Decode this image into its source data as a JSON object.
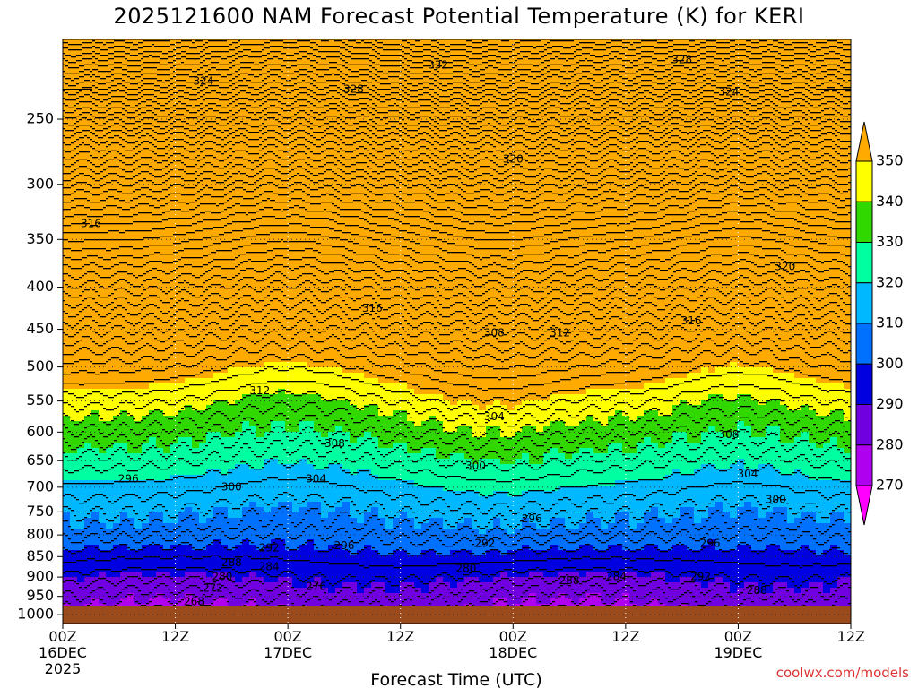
{
  "chart_data": {
    "type": "contour",
    "title": "2025121600 NAM Forecast Potential Temperature (K) for KERI",
    "xlabel": "Forecast Time (UTC)",
    "ylabel": "",
    "x_ticks": [
      {
        "hour": 0,
        "lines": [
          "00Z",
          "16DEC",
          "2025"
        ]
      },
      {
        "hour": 12,
        "lines": [
          "12Z"
        ]
      },
      {
        "hour": 24,
        "lines": [
          "00Z",
          "17DEC"
        ]
      },
      {
        "hour": 36,
        "lines": [
          "12Z"
        ]
      },
      {
        "hour": 48,
        "lines": [
          "00Z",
          "18DEC"
        ]
      },
      {
        "hour": 60,
        "lines": [
          "12Z"
        ]
      },
      {
        "hour": 72,
        "lines": [
          "00Z",
          "19DEC"
        ]
      },
      {
        "hour": 84,
        "lines": [
          "12Z"
        ]
      }
    ],
    "x_range": [
      0,
      84
    ],
    "y_ticks": [
      250,
      300,
      350,
      400,
      450,
      500,
      550,
      600,
      650,
      700,
      750,
      800,
      850,
      900,
      950,
      1000
    ],
    "y_range": [
      200,
      1025
    ],
    "y_scale": "log",
    "y_reversed": true,
    "colorbar": {
      "labels": [
        "270",
        "280",
        "290",
        "300",
        "310",
        "320",
        "330",
        "340",
        "350"
      ],
      "colors": [
        "#ff00ff",
        "#b000f0",
        "#7000e0",
        "#0000e0",
        "#0070ff",
        "#00b8ff",
        "#00ffa0",
        "#30d800",
        "#ffff00",
        "#ffaa00"
      ]
    },
    "contour_labels": [
      {
        "text": "324",
        "hour": 15,
        "pressure": 225
      },
      {
        "text": "328",
        "hour": 31,
        "pressure": 230
      },
      {
        "text": "332",
        "hour": 40,
        "pressure": 215
      },
      {
        "text": "328",
        "hour": 66,
        "pressure": 212
      },
      {
        "text": "324",
        "hour": 71,
        "pressure": 232
      },
      {
        "text": "320",
        "hour": 48,
        "pressure": 280
      },
      {
        "text": "316",
        "hour": 3,
        "pressure": 335
      },
      {
        "text": "320",
        "hour": 77,
        "pressure": 378
      },
      {
        "text": "316",
        "hour": 33,
        "pressure": 425
      },
      {
        "text": "308",
        "hour": 46,
        "pressure": 455
      },
      {
        "text": "312",
        "hour": 53,
        "pressure": 455
      },
      {
        "text": "316",
        "hour": 67,
        "pressure": 440
      },
      {
        "text": "312",
        "hour": 21,
        "pressure": 535
      },
      {
        "text": "304",
        "hour": 46,
        "pressure": 575
      },
      {
        "text": "308",
        "hour": 29,
        "pressure": 620
      },
      {
        "text": "308",
        "hour": 71,
        "pressure": 605
      },
      {
        "text": "296",
        "hour": 7,
        "pressure": 685
      },
      {
        "text": "300",
        "hour": 18,
        "pressure": 700
      },
      {
        "text": "304",
        "hour": 27,
        "pressure": 685
      },
      {
        "text": "300",
        "hour": 44,
        "pressure": 660
      },
      {
        "text": "304",
        "hour": 73,
        "pressure": 675
      },
      {
        "text": "300",
        "hour": 76,
        "pressure": 725
      },
      {
        "text": "296",
        "hour": 50,
        "pressure": 765
      },
      {
        "text": "292",
        "hour": 22,
        "pressure": 830
      },
      {
        "text": "296",
        "hour": 30,
        "pressure": 825
      },
      {
        "text": "292",
        "hour": 45,
        "pressure": 820
      },
      {
        "text": "296",
        "hour": 69,
        "pressure": 820
      },
      {
        "text": "288",
        "hour": 18,
        "pressure": 865
      },
      {
        "text": "284",
        "hour": 22,
        "pressure": 875
      },
      {
        "text": "280",
        "hour": 17,
        "pressure": 900
      },
      {
        "text": "280",
        "hour": 43,
        "pressure": 880
      },
      {
        "text": "288",
        "hour": 54,
        "pressure": 910
      },
      {
        "text": "284",
        "hour": 59,
        "pressure": 900
      },
      {
        "text": "292",
        "hour": 68,
        "pressure": 900
      },
      {
        "text": "272",
        "hour": 16,
        "pressure": 930
      },
      {
        "text": "276",
        "hour": 27,
        "pressure": 925
      },
      {
        "text": "268",
        "hour": 14,
        "pressure": 965
      },
      {
        "text": "288",
        "hour": 74,
        "pressure": 935
      }
    ]
  },
  "credit": "coolwx.com/models"
}
